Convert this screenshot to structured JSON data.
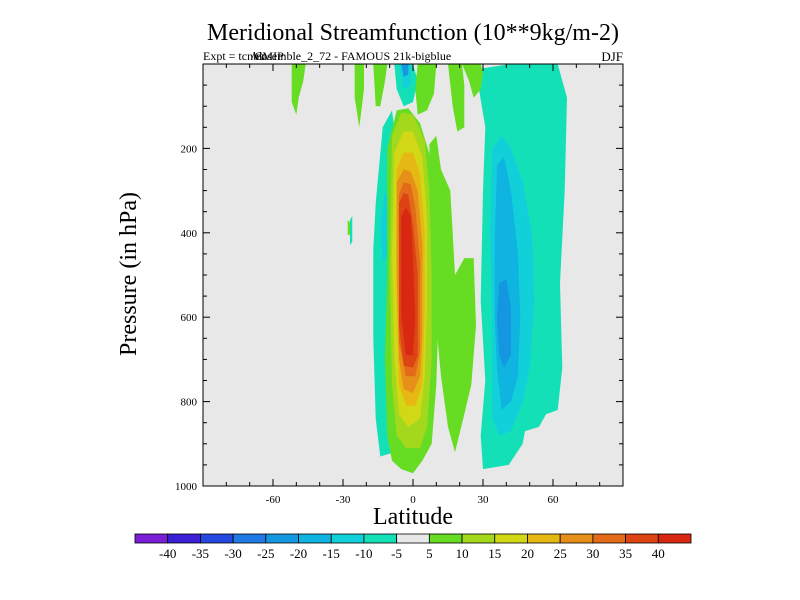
{
  "chart_data": {
    "type": "heatmap",
    "title": "Meridional Streamfunction (10**9kg/m-2)",
    "subtitle": "Expt = tcnbk/CMIP ensemble_2_72 - FAMOUS 21k-bigblue",
    "subtitle_left": "Expt = tcnbk",
    "subtitle_overlap": "/CMIP",
    "subtitle_right": "ensemble_2_72 - FAMOUS 21k-bigblue",
    "season": "DJF",
    "xlabel": "Latitude",
    "ylabel": "Pressure (in hPa)",
    "xlim": [
      -90,
      90
    ],
    "ylim": [
      1000,
      0
    ],
    "x_ticks": [
      -60,
      -30,
      0,
      30,
      60
    ],
    "x_tick_labels": [
      "-60",
      "-30",
      "0",
      "30",
      "60"
    ],
    "y_ticks": [
      200,
      400,
      600,
      800,
      1000
    ],
    "y_tick_labels": [
      "200",
      "400",
      "600",
      "800",
      "1000"
    ],
    "background_color": "#e8e8e8",
    "colorbar": {
      "levels": [
        -40,
        -35,
        -30,
        -25,
        -20,
        -15,
        -10,
        -5,
        5,
        10,
        15,
        20,
        25,
        30,
        35,
        40
      ],
      "labels": [
        "-40",
        "-35",
        "-30",
        "-25",
        "-20",
        "-15",
        "-10",
        "-5",
        "5",
        "10",
        "15",
        "20",
        "25",
        "30",
        "35",
        "40"
      ],
      "colors": [
        "#7a1fd6",
        "#3a1fd6",
        "#2448e0",
        "#1f7ae6",
        "#1496e0",
        "#0fb4e0",
        "#12d0da",
        "#14e0b8",
        "#e8e8e8",
        "#66dd22",
        "#a4d81c",
        "#d2d816",
        "#e6b814",
        "#e6901a",
        "#e26a18",
        "#dd4414",
        "#d82812"
      ]
    },
    "regions": [
      {
        "name": "main-positive-cell",
        "level_range": [
          5,
          40
        ],
        "peak": 40,
        "lat_range": [
          -12,
          10
        ],
        "pressure_range": [
          100,
          970
        ],
        "core_lat": -3,
        "core_pressure": 500
      },
      {
        "name": "nh-negative-cell",
        "level_range": [
          -25,
          -5
        ],
        "peak": -25,
        "lat_range": [
          28,
          65
        ],
        "pressure_range": [
          10,
          960
        ],
        "core_lat": 38,
        "core_pressure": 620
      },
      {
        "name": "tropical-negative-cell",
        "level_range": [
          -15,
          -5
        ],
        "peak": -15,
        "lat_range": [
          -18,
          -7
        ],
        "pressure_range": [
          150,
          930
        ],
        "core_lat": -12,
        "core_pressure": 400
      },
      {
        "name": "upper-negative-spot",
        "level_range": [
          -20,
          -5
        ],
        "peak": -20,
        "lat_range": [
          -8,
          0
        ],
        "pressure_range": [
          10,
          100
        ]
      },
      {
        "name": "nh-subtropical-negative-blob",
        "level_range": [
          -15,
          -5
        ],
        "peak": -15,
        "lat_range": [
          8,
          17
        ],
        "pressure_range": [
          280,
          510
        ]
      },
      {
        "name": "nh-lower-positive-cell",
        "level_range": [
          5,
          10
        ],
        "peak": 10,
        "lat_range": [
          10,
          27
        ],
        "pressure_range": [
          160,
          920
        ]
      },
      {
        "name": "sh-upper-positive-patches",
        "level_range": [
          5,
          10
        ],
        "peak": 10,
        "lat_range": [
          -55,
          30
        ],
        "pressure_range": [
          10,
          150
        ]
      }
    ]
  }
}
